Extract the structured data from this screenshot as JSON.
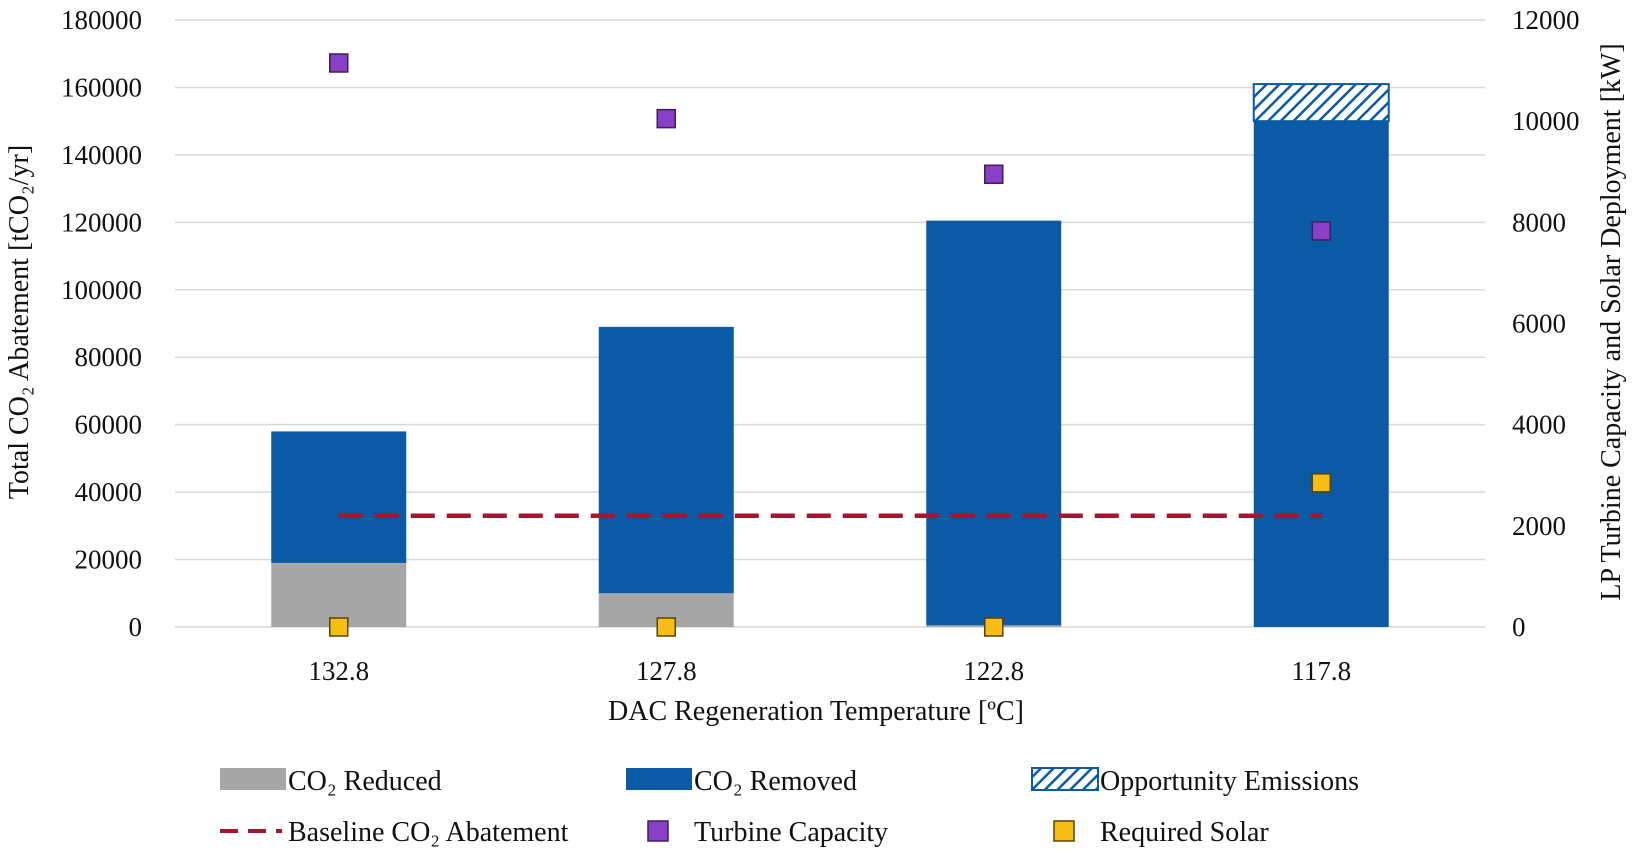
{
  "chart_data": {
    "type": "bar",
    "categories": [
      "132.8",
      "127.8",
      "122.8",
      "117.8"
    ],
    "xlabel": "DAC Regeneration Temperature [ºC]",
    "ylabel": "Total CO₂ Abatement [tCO₂/yr]",
    "y2label": "LP Turbine Capacity and Solar Deployment [kW]",
    "ylim": [
      0,
      180000
    ],
    "y2lim": [
      0,
      12000
    ],
    "yticks": [
      "0",
      "20000",
      "40000",
      "60000",
      "80000",
      "100000",
      "120000",
      "140000",
      "160000",
      "180000"
    ],
    "y2ticks": [
      "0",
      "2000",
      "4000",
      "6000",
      "8000",
      "10000",
      "12000"
    ],
    "grid": true,
    "legend_position": "bottom",
    "stacked_series": [
      {
        "name": "CO₂ Reduced",
        "values": [
          19000,
          10000,
          500,
          0
        ],
        "color": "#a6a6a6",
        "pattern": "solid"
      },
      {
        "name": "CO₂ Removed",
        "values": [
          39000,
          79000,
          120000,
          150000
        ],
        "color": "#0a5aa6",
        "pattern": "solid"
      },
      {
        "name": "Opportunity Emissions",
        "values": [
          0,
          0,
          0,
          11000
        ],
        "color": "#0a5aa6",
        "pattern": "hatch"
      }
    ],
    "line_series": {
      "name": "Baseline CO₂ Abatement",
      "value": 33000,
      "color": "#a3172c",
      "style": "dashed"
    },
    "marker_series": [
      {
        "name": "Turbine Capacity",
        "axis": "right",
        "values": [
          11150,
          10050,
          8950,
          7830
        ],
        "color": "#8a3fc9"
      },
      {
        "name": "Required Solar",
        "axis": "right",
        "values": [
          0,
          0,
          0,
          2850
        ],
        "color": "#f6bd16"
      }
    ]
  },
  "legend": {
    "reduced": "CO₂ Reduced",
    "removed": "CO₂ Removed",
    "opportunity": "Opportunity Emissions",
    "baseline": "Baseline CO₂ Abatement",
    "turbine": "Turbine Capacity",
    "solar": "Required Solar"
  }
}
